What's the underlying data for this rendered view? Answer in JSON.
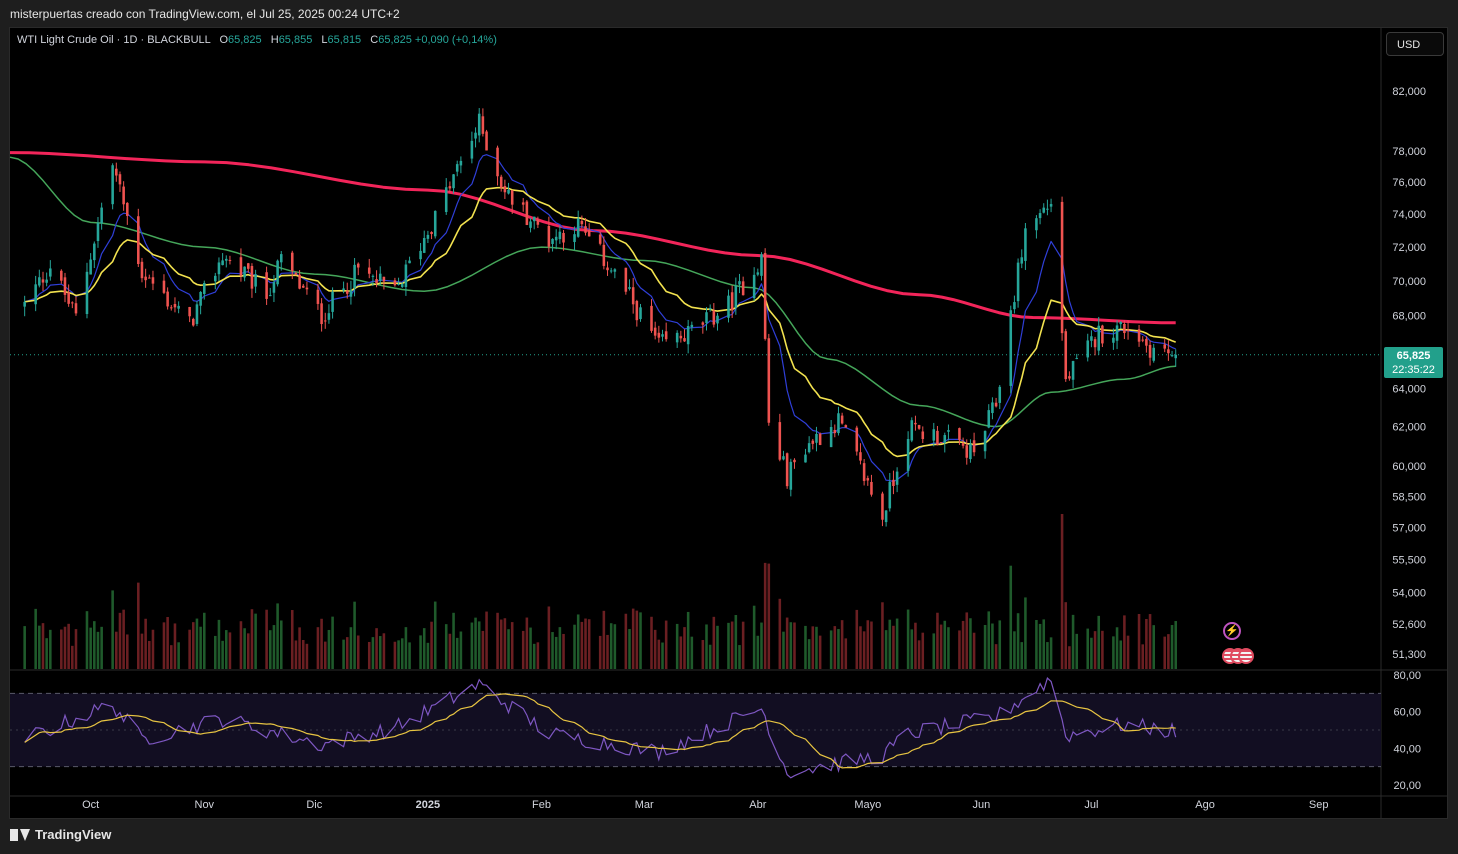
{
  "header": {
    "credit": "misterpuertas creado con TradingView.com, el Jul 25, 2025 00:24 UTC+2"
  },
  "legend": {
    "symbol": "WTI Light Crude Oil · 1D · BLACKBULL",
    "open_label": "O",
    "open": "65,825",
    "high_label": "H",
    "high": "65,855",
    "low_label": "L",
    "low": "65,815",
    "close_label": "C",
    "close": "65,825",
    "change": "+0,090 (+0,14%)"
  },
  "currency": "USD",
  "last_price": {
    "price": "65,825",
    "countdown": "22:35:22"
  },
  "footer": {
    "brand": "TradingView"
  },
  "icons": {
    "logo": "tradingview-logo-icon",
    "flash": "lightning-icon",
    "events": "us-flag-icon"
  },
  "colors": {
    "up": "#26a69a",
    "down": "#ef5350",
    "vol_up": "#1f5a2b",
    "vol_down": "#6b1f22",
    "ema200": "#f2255a",
    "ema50": "#45a65a",
    "ema20": "#f2e24f",
    "ema9": "#2f3fd8",
    "rsi": "#7e57c2",
    "rsi_ma": "#e7c442",
    "price_tag": "#22a08b"
  },
  "chart_data": {
    "type": "candlestick",
    "price_axis": {
      "ticks": [
        51.3,
        52.6,
        54.0,
        55.5,
        57.0,
        58.5,
        60.0,
        62.0,
        64.0,
        68.0,
        70.0,
        72.0,
        74.0,
        76.0,
        78.0,
        82.0
      ],
      "tick_labels": [
        "51,300",
        "52,600",
        "54,000",
        "55,500",
        "57,000",
        "58,500",
        "60,000",
        "62,000",
        "64,000",
        "68,000",
        "70,000",
        "72,000",
        "74,000",
        "76,000",
        "78,000",
        "82,000"
      ],
      "scale": "log"
    },
    "time_axis": {
      "labels": [
        "Oct",
        "Nov",
        "Dic",
        "2025",
        "Feb",
        "Mar",
        "Abr",
        "Mayo",
        "Jun",
        "Jul",
        "Ago",
        "Sep"
      ],
      "bold": [
        "2025"
      ]
    },
    "last_close": 65.825,
    "anchors": [
      {
        "t": "2024-09-13",
        "c": 68.6
      },
      {
        "t": "2024-09-20",
        "c": 70.9
      },
      {
        "t": "2024-09-27",
        "c": 67.9
      },
      {
        "t": "2024-10-07",
        "c": 77.1
      },
      {
        "t": "2024-10-15",
        "c": 70.5
      },
      {
        "t": "2024-10-28",
        "c": 67.5
      },
      {
        "t": "2024-11-06",
        "c": 71.5
      },
      {
        "t": "2024-11-18",
        "c": 69.2
      },
      {
        "t": "2024-11-22",
        "c": 71.2
      },
      {
        "t": "2024-12-03",
        "c": 68.0
      },
      {
        "t": "2024-12-13",
        "c": 70.6
      },
      {
        "t": "2024-12-23",
        "c": 69.3
      },
      {
        "t": "2025-01-03",
        "c": 73.8
      },
      {
        "t": "2025-01-15",
        "c": 79.8
      },
      {
        "t": "2025-01-22",
        "c": 75.4
      },
      {
        "t": "2025-02-03",
        "c": 72.5
      },
      {
        "t": "2025-02-11",
        "c": 73.3
      },
      {
        "t": "2025-02-21",
        "c": 70.4
      },
      {
        "t": "2025-03-05",
        "c": 66.3
      },
      {
        "t": "2025-03-13",
        "c": 67.0
      },
      {
        "t": "2025-03-24",
        "c": 68.6
      },
      {
        "t": "2025-04-02",
        "c": 71.3
      },
      {
        "t": "2025-04-04",
        "c": 62.1
      },
      {
        "t": "2025-04-09",
        "c": 59.5
      },
      {
        "t": "2025-04-14",
        "c": 61.0
      },
      {
        "t": "2025-04-23",
        "c": 62.3
      },
      {
        "t": "2025-05-05",
        "c": 57.5
      },
      {
        "t": "2025-05-12",
        "c": 61.9
      },
      {
        "t": "2025-05-21",
        "c": 61.5
      },
      {
        "t": "2025-05-30",
        "c": 60.6
      },
      {
        "t": "2025-06-05",
        "c": 63.2
      },
      {
        "t": "2025-06-13",
        "c": 73.0
      },
      {
        "t": "2025-06-20",
        "c": 74.8
      },
      {
        "t": "2025-06-24",
        "c": 64.4
      },
      {
        "t": "2025-07-03",
        "c": 67.0
      },
      {
        "t": "2025-07-11",
        "c": 67.4
      },
      {
        "t": "2025-07-17",
        "c": 66.2
      },
      {
        "t": "2025-07-24",
        "c": 65.825
      }
    ],
    "indicators": [
      {
        "name": "EMA 200",
        "color": "#f2255a",
        "path": [
          [
            "2024-09-09",
            77.9
          ],
          [
            "2024-11-01",
            77.3
          ],
          [
            "2025-01-01",
            75.5
          ],
          [
            "2025-02-15",
            73.0
          ],
          [
            "2025-04-01",
            71.5
          ],
          [
            "2025-05-15",
            69.2
          ],
          [
            "2025-06-15",
            67.9
          ],
          [
            "2025-07-24",
            67.6
          ]
        ]
      },
      {
        "name": "EMA 50",
        "color": "#45a65a",
        "path": [
          [
            "2024-09-09",
            77.6
          ],
          [
            "2024-10-01",
            73.5
          ],
          [
            "2024-11-01",
            72.0
          ],
          [
            "2024-12-01",
            70.4
          ],
          [
            "2024-12-31",
            69.4
          ],
          [
            "2025-02-01",
            72.0
          ],
          [
            "2025-03-01",
            71.2
          ],
          [
            "2025-03-31",
            69.6
          ],
          [
            "2025-04-20",
            65.6
          ],
          [
            "2025-05-15",
            63.1
          ],
          [
            "2025-06-05",
            62.0
          ],
          [
            "2025-06-20",
            63.8
          ],
          [
            "2025-07-10",
            64.5
          ],
          [
            "2025-07-24",
            65.2
          ]
        ]
      },
      {
        "name": "EMA 20",
        "color": "#f2e24f"
      },
      {
        "name": "EMA 9",
        "color": "#2f3fd8"
      }
    ],
    "rsi": {
      "ticks": [
        20,
        40,
        60,
        80
      ],
      "tick_labels": [
        "20,00",
        "40,00",
        "60,00",
        "80,00"
      ],
      "bands": [
        30,
        70
      ],
      "midline": 50,
      "anchors": [
        {
          "t": "2024-09-09",
          "v": 42
        },
        {
          "t": "2024-10-07",
          "v": 64
        },
        {
          "t": "2024-10-15",
          "v": 45
        },
        {
          "t": "2024-11-06",
          "v": 56
        },
        {
          "t": "2024-12-03",
          "v": 42
        },
        {
          "t": "2024-12-23",
          "v": 51
        },
        {
          "t": "2025-01-15",
          "v": 75
        },
        {
          "t": "2025-02-03",
          "v": 48
        },
        {
          "t": "2025-03-05",
          "v": 38
        },
        {
          "t": "2025-04-02",
          "v": 62
        },
        {
          "t": "2025-04-09",
          "v": 27
        },
        {
          "t": "2025-05-05",
          "v": 36
        },
        {
          "t": "2025-05-12",
          "v": 48
        },
        {
          "t": "2025-06-05",
          "v": 57
        },
        {
          "t": "2025-06-20",
          "v": 78
        },
        {
          "t": "2025-06-24",
          "v": 47
        },
        {
          "t": "2025-07-10",
          "v": 53
        },
        {
          "t": "2025-07-24",
          "v": 49
        }
      ]
    }
  }
}
